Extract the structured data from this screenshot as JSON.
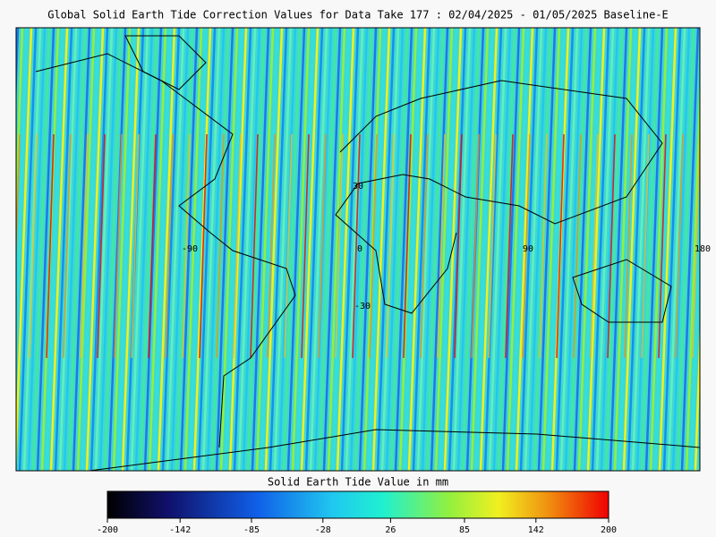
{
  "title": "Global Solid Earth Tide Correction Values for Data Take 177 : 02/04/2025 - 01/05/2025 Baseline-E",
  "map_labels": [
    "30",
    "-90",
    "0",
    "90",
    "180",
    "-30"
  ],
  "colorbar": {
    "label": "Solid Earth Tide Value in mm",
    "lim": [
      -200,
      200
    ],
    "ticks": [
      -200,
      -142,
      -85,
      -28,
      26,
      85,
      142,
      200
    ]
  }
}
